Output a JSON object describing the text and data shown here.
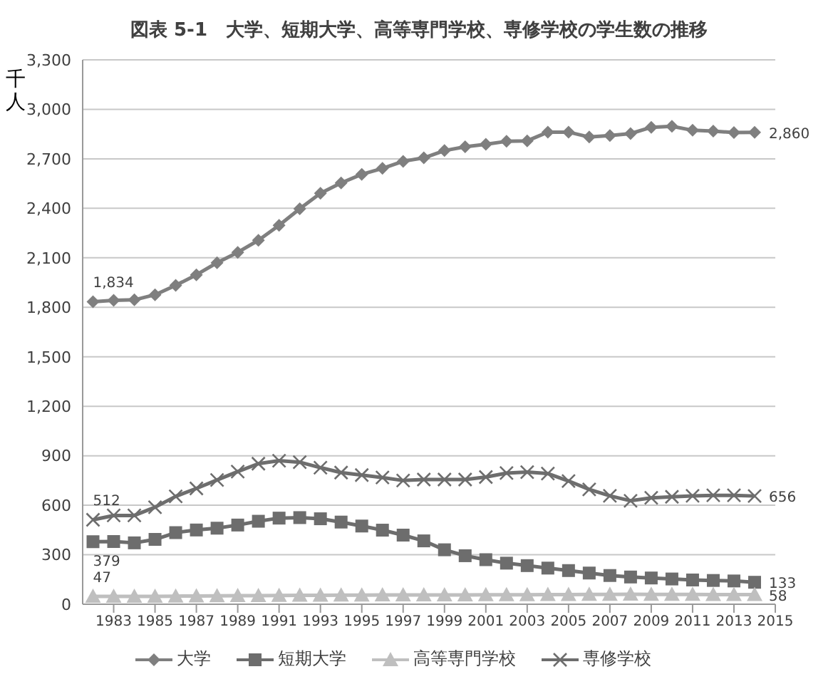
{
  "chart_data": {
    "type": "line",
    "title": "図表 5-1　大学、短期大学、高等専門学校、専修学校の学生数の推移",
    "ylabel": "千人",
    "x": [
      1982,
      1983,
      1984,
      1985,
      1986,
      1987,
      1988,
      1989,
      1990,
      1991,
      1992,
      1993,
      1994,
      1995,
      1996,
      1997,
      1998,
      1999,
      2000,
      2001,
      2002,
      2003,
      2004,
      2005,
      2006,
      2007,
      2008,
      2009,
      2010,
      2011,
      2012,
      2013,
      2014
    ],
    "xlim": [
      1981.5,
      2015
    ],
    "xticks": [
      1983,
      1985,
      1987,
      1989,
      1991,
      1993,
      1995,
      1997,
      1999,
      2001,
      2003,
      2005,
      2007,
      2009,
      2011,
      2013,
      2015
    ],
    "ylim": [
      0,
      3300
    ],
    "yticks": [
      0,
      300,
      600,
      900,
      {
        "value": 1200,
        "label": "1,200"
      },
      {
        "value": 1500,
        "label": "1,500"
      },
      {
        "value": 1800,
        "label": "1,800"
      },
      {
        "value": 2100,
        "label": "2,100"
      },
      {
        "value": 2400,
        "label": "2,400"
      },
      {
        "value": 2700,
        "label": "2,700"
      },
      {
        "value": 3000,
        "label": "3,000"
      },
      {
        "value": 3300,
        "label": "3,300"
      }
    ],
    "grid": "y",
    "legend": "bottom",
    "line_style": "solid",
    "series": [
      {
        "name": "大学",
        "color": "#7f7f7f",
        "marker": "diamond",
        "values": [
          1834,
          1842,
          1845,
          1876,
          1933,
          1997,
          2070,
          2133,
          2206,
          2297,
          2397,
          2491,
          2554,
          2606,
          2642,
          2685,
          2706,
          2750,
          2773,
          2788,
          2806,
          2809,
          2862,
          2862,
          2832,
          2841,
          2853,
          2891,
          2897,
          2873,
          2868,
          2859,
          2860
        ],
        "value_labels": [
          "1,834",
          null,
          null,
          null,
          null,
          null,
          null,
          null,
          null,
          null,
          null,
          null,
          null,
          null,
          null,
          null,
          null,
          null,
          null,
          null,
          null,
          null,
          null,
          null,
          null,
          null,
          null,
          null,
          null,
          null,
          null,
          null,
          "2,860"
        ]
      },
      {
        "name": "短期大学",
        "color": "#6d6d6d",
        "marker": "square",
        "values": [
          379,
          380,
          372,
          393,
          434,
          450,
          461,
          480,
          503,
          522,
          525,
          518,
          498,
          474,
          449,
          419,
          384,
          330,
          294,
          270,
          249,
          234,
          219,
          204,
          189,
          174,
          165,
          159,
          153,
          147,
          144,
          141,
          133
        ],
        "value_labels": [
          "379",
          null,
          null,
          null,
          null,
          null,
          null,
          null,
          null,
          null,
          null,
          null,
          null,
          null,
          null,
          null,
          null,
          null,
          null,
          null,
          null,
          null,
          null,
          null,
          null,
          null,
          null,
          null,
          null,
          null,
          null,
          null,
          "133"
        ]
      },
      {
        "name": "高等専門学校",
        "color": "#bfbfbf",
        "marker": "triangle",
        "values": [
          47,
          48,
          48,
          48,
          49,
          50,
          51,
          52,
          52,
          53,
          54,
          54,
          55,
          55,
          56,
          56,
          56,
          56,
          56,
          57,
          57,
          57,
          58,
          58,
          59,
          59,
          60,
          59,
          59,
          59,
          58,
          58,
          58
        ],
        "value_labels": [
          "47",
          null,
          null,
          null,
          null,
          null,
          null,
          null,
          null,
          null,
          null,
          null,
          null,
          null,
          null,
          null,
          null,
          null,
          null,
          null,
          null,
          null,
          null,
          null,
          null,
          null,
          null,
          null,
          null,
          null,
          null,
          null,
          "58"
        ]
      },
      {
        "name": "専修学校",
        "color": "#6d6d6d",
        "marker": "cross",
        "values": [
          512,
          538,
          538,
          588,
          654,
          702,
          753,
          804,
          852,
          870,
          861,
          828,
          798,
          783,
          768,
          750,
          756,
          756,
          756,
          771,
          795,
          801,
          792,
          747,
          696,
          657,
          627,
          645,
          651,
          657,
          660,
          660,
          656
        ],
        "value_labels": [
          "512",
          null,
          null,
          null,
          null,
          null,
          null,
          null,
          null,
          null,
          null,
          null,
          null,
          null,
          null,
          null,
          null,
          null,
          null,
          null,
          null,
          null,
          null,
          null,
          null,
          null,
          null,
          null,
          null,
          null,
          null,
          null,
          "656"
        ]
      }
    ]
  }
}
